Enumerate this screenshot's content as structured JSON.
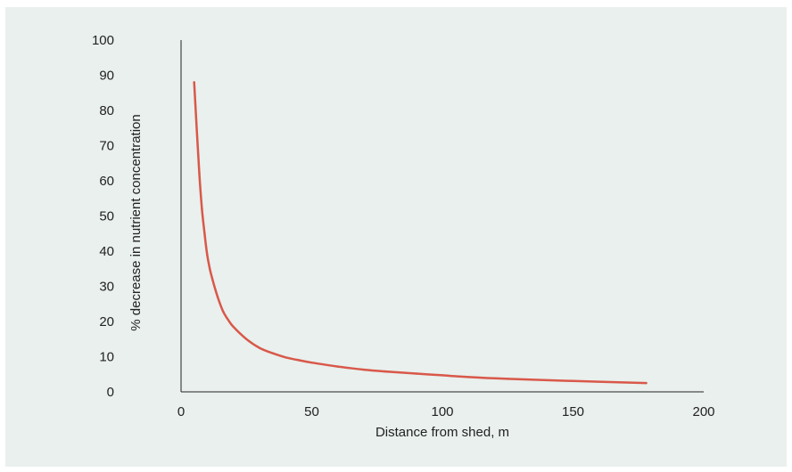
{
  "chart_data": {
    "type": "line",
    "title": "",
    "xlabel": "Distance from shed, m",
    "ylabel": "% decrease in nutrient concentration",
    "xlim": [
      0,
      200
    ],
    "ylim": [
      0,
      100
    ],
    "x_ticks": [
      "0",
      "50",
      "100",
      "150",
      "200"
    ],
    "y_ticks": [
      "0",
      "10",
      "20",
      "30",
      "40",
      "50",
      "60",
      "70",
      "80",
      "90",
      "100"
    ],
    "grid": false,
    "legend": "none",
    "series": [
      {
        "color": "#d9584a",
        "x": [
          5,
          7,
          8,
          9,
          10,
          11,
          12,
          14,
          16,
          18,
          20,
          25,
          30,
          35,
          40,
          45,
          50,
          60,
          70,
          80,
          90,
          100,
          110,
          125,
          150,
          178
        ],
        "y": [
          88,
          62,
          52,
          45,
          39,
          35,
          32,
          27,
          23,
          20.5,
          18.5,
          15,
          12.5,
          11,
          9.8,
          9,
          8.3,
          7.2,
          6.3,
          5.7,
          5.2,
          4.7,
          4.2,
          3.7,
          3.1,
          2.5
        ]
      }
    ]
  }
}
